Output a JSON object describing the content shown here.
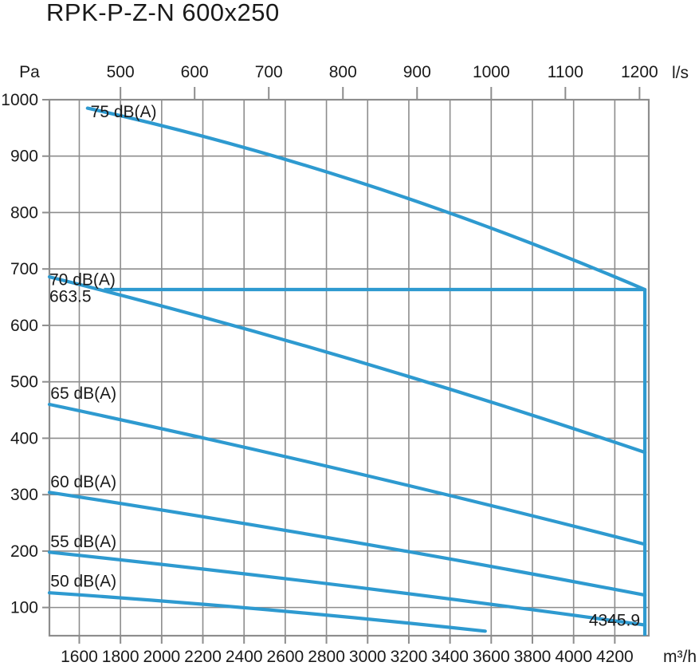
{
  "title": "RPK-P-Z-N 600x250",
  "chart_data": {
    "type": "line",
    "title": "RPK-P-Z-N 600x250",
    "grid": true,
    "x_axis_bottom": {
      "unit": "m³/h",
      "ticks": [
        1600,
        1800,
        2000,
        2200,
        2400,
        2600,
        2800,
        3000,
        3200,
        3400,
        3600,
        3800,
        4000,
        4200
      ]
    },
    "x_axis_top": {
      "unit": "l/s",
      "ticks": [
        500,
        600,
        700,
        800,
        900,
        1000,
        1100,
        1200
      ],
      "m3h_per_unit": 3.6
    },
    "y_axis": {
      "unit": "Pa",
      "ticks": [
        100,
        200,
        300,
        400,
        500,
        600,
        700,
        800,
        900,
        1000
      ]
    },
    "axis_ranges": {
      "x_m3h": [
        1455,
        4365
      ],
      "y_pa": [
        50,
        1000
      ]
    },
    "series": [
      {
        "name": "75 dB(A)",
        "points_m3h_pa": [
          [
            1640,
            985
          ],
          [
            2990,
            850
          ],
          [
            4345.9,
            663.5
          ]
        ],
        "label_pos": [
          1655,
          989
        ]
      },
      {
        "name": "70 dB(A)",
        "points_m3h_pa": [
          [
            1455,
            686
          ],
          [
            2900,
            542
          ],
          [
            4345.9,
            375
          ]
        ],
        "label_pos": [
          1455,
          692
        ]
      },
      {
        "name": "65 dB(A)",
        "points_m3h_pa": [
          [
            1455,
            460
          ],
          [
            2900,
            342
          ],
          [
            4345.9,
            212
          ]
        ],
        "label_pos": [
          1460,
          490
        ]
      },
      {
        "name": "60 dB(A)",
        "points_m3h_pa": [
          [
            1455,
            304
          ],
          [
            2900,
            218
          ],
          [
            4345.9,
            122
          ]
        ],
        "label_pos": [
          1460,
          333
        ]
      },
      {
        "name": "55 dB(A)",
        "points_m3h_pa": [
          [
            1455,
            198
          ],
          [
            2900,
            138
          ],
          [
            4345.9,
            69
          ]
        ],
        "label_pos": [
          1460,
          227
        ]
      },
      {
        "name": "50 dB(A)",
        "points_m3h_pa": [
          [
            1455,
            126
          ],
          [
            2513,
            96
          ],
          [
            3571,
            58
          ]
        ],
        "label_pos": [
          1460,
          157
        ]
      }
    ],
    "operating_limit": {
      "max_pressure_pa": 663.5,
      "max_flow_m3h": 4345.9,
      "pressure_label": "663.5",
      "flow_label": "4345.9",
      "h_line_start_m3h": 1720
    },
    "colors": {
      "curve": "#2E9AD0",
      "grid": "#8D8D8D",
      "text": "#1A1A1A"
    }
  }
}
